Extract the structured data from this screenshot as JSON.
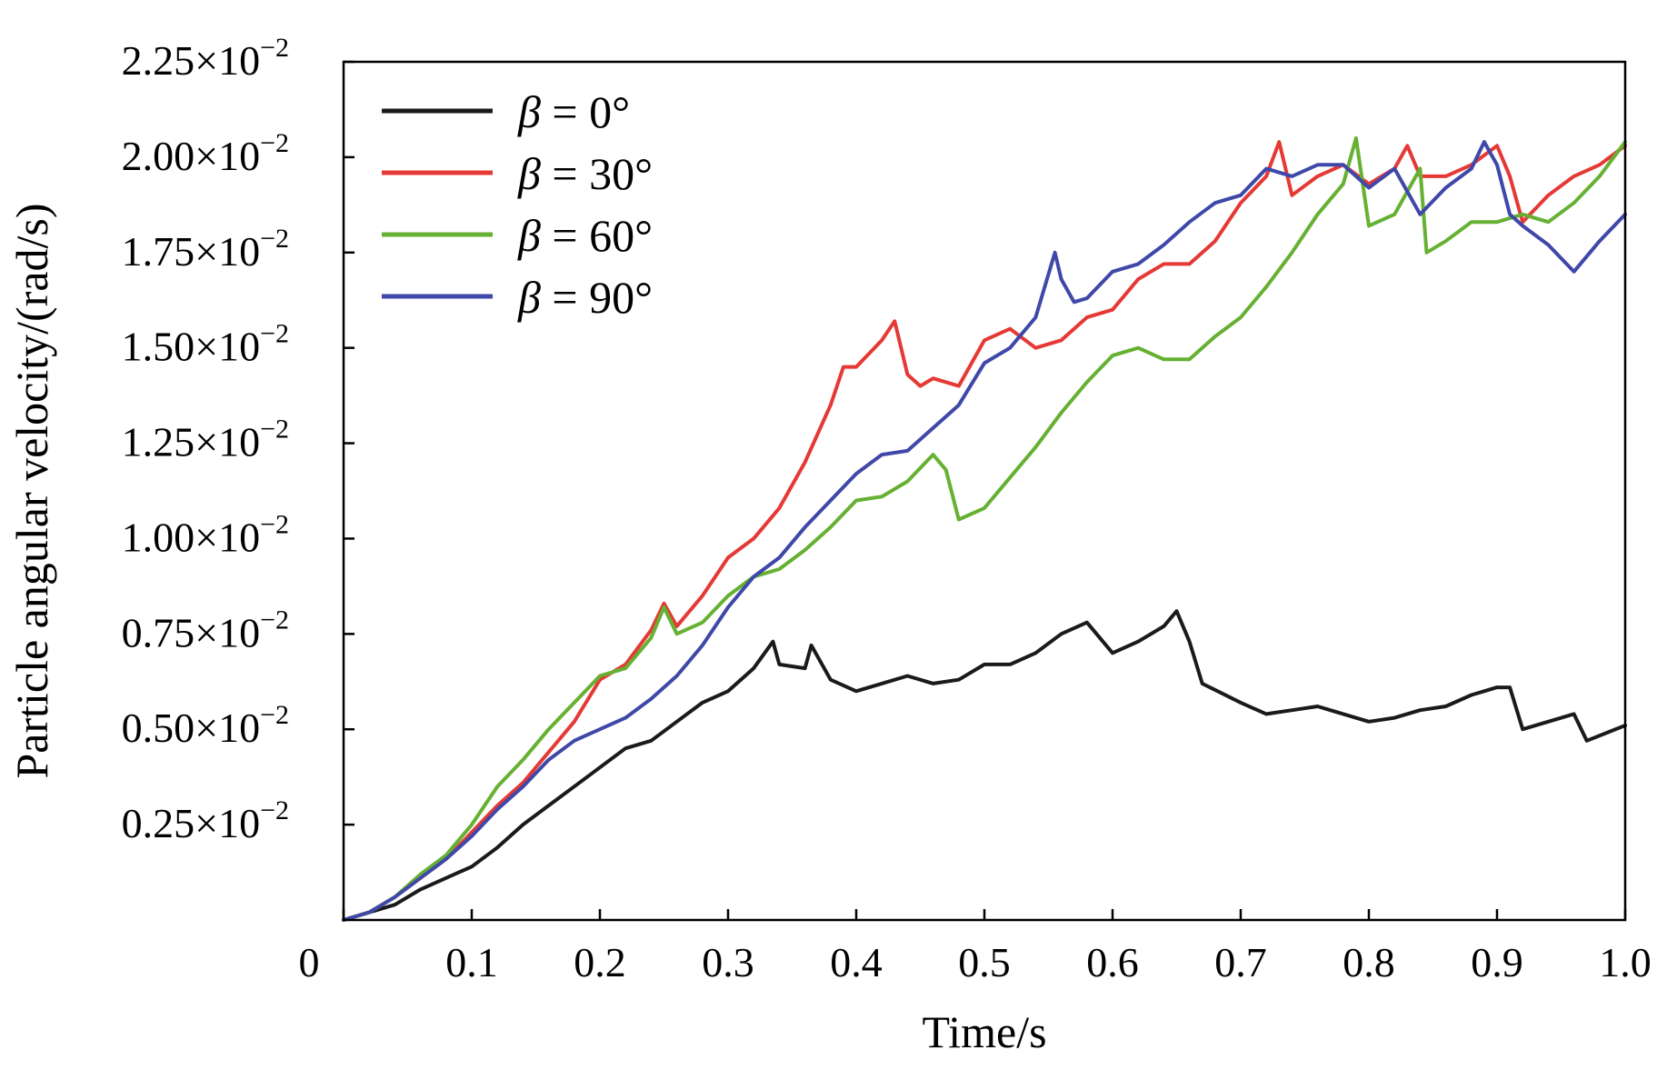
{
  "chart_data": {
    "type": "line",
    "xlabel": "Time/s",
    "ylabel": "Particle angular velocity/(rad/s)",
    "xlim": [
      0,
      1.0
    ],
    "ylim": [
      0,
      0.0225
    ],
    "x_ticks": [
      {
        "value": 0,
        "label": "0"
      },
      {
        "value": 0.1,
        "label": "0.1"
      },
      {
        "value": 0.2,
        "label": "0.2"
      },
      {
        "value": 0.3,
        "label": "0.3"
      },
      {
        "value": 0.4,
        "label": "0.4"
      },
      {
        "value": 0.5,
        "label": "0.5"
      },
      {
        "value": 0.6,
        "label": "0.6"
      },
      {
        "value": 0.7,
        "label": "0.7"
      },
      {
        "value": 0.8,
        "label": "0.8"
      },
      {
        "value": 0.9,
        "label": "0.9"
      },
      {
        "value": 1.0,
        "label": "1.0"
      }
    ],
    "y_ticks": [
      {
        "value": 0.0025,
        "mantissa": "0.25",
        "times": "×10",
        "exponent": "−2"
      },
      {
        "value": 0.005,
        "mantissa": "0.50",
        "times": "×10",
        "exponent": "−2"
      },
      {
        "value": 0.0075,
        "mantissa": "0.75",
        "times": "×10",
        "exponent": "−2"
      },
      {
        "value": 0.01,
        "mantissa": "1.00",
        "times": "×10",
        "exponent": "−2"
      },
      {
        "value": 0.0125,
        "mantissa": "1.25",
        "times": "×10",
        "exponent": "−2"
      },
      {
        "value": 0.015,
        "mantissa": "1.50",
        "times": "×10",
        "exponent": "−2"
      },
      {
        "value": 0.0175,
        "mantissa": "1.75",
        "times": "×10",
        "exponent": "−2"
      },
      {
        "value": 0.02,
        "mantissa": "2.00",
        "times": "×10",
        "exponent": "−2"
      },
      {
        "value": 0.0225,
        "mantissa": "2.25",
        "times": "×10",
        "exponent": "−2"
      }
    ],
    "grid": false,
    "legend_position": "top-left",
    "series": [
      {
        "name": "β = 0°",
        "beta_symbol": "β",
        "beta_value": " = 0°",
        "color": "#1a1a1a",
        "x": [
          0,
          0.02,
          0.04,
          0.06,
          0.08,
          0.1,
          0.12,
          0.14,
          0.16,
          0.18,
          0.2,
          0.22,
          0.24,
          0.26,
          0.28,
          0.3,
          0.32,
          0.335,
          0.34,
          0.36,
          0.365,
          0.38,
          0.4,
          0.42,
          0.44,
          0.46,
          0.48,
          0.5,
          0.52,
          0.54,
          0.56,
          0.58,
          0.6,
          0.62,
          0.64,
          0.65,
          0.66,
          0.67,
          0.7,
          0.72,
          0.74,
          0.76,
          0.78,
          0.8,
          0.82,
          0.84,
          0.86,
          0.88,
          0.9,
          0.91,
          0.92,
          0.94,
          0.96,
          0.97,
          1.0
        ],
        "y": [
          0,
          0.0002,
          0.0004,
          0.0008,
          0.0011,
          0.0014,
          0.0019,
          0.0025,
          0.003,
          0.0035,
          0.004,
          0.0045,
          0.0047,
          0.0052,
          0.0057,
          0.006,
          0.0066,
          0.0073,
          0.0067,
          0.0066,
          0.0072,
          0.0063,
          0.006,
          0.0062,
          0.0064,
          0.0062,
          0.0063,
          0.0067,
          0.0067,
          0.007,
          0.0075,
          0.0078,
          0.007,
          0.0073,
          0.0077,
          0.0081,
          0.0073,
          0.0062,
          0.0057,
          0.0054,
          0.0055,
          0.0056,
          0.0054,
          0.0052,
          0.0053,
          0.0055,
          0.0056,
          0.0059,
          0.0061,
          0.0061,
          0.005,
          0.0052,
          0.0054,
          0.0047,
          0.0051
        ]
      },
      {
        "name": "β = 30°",
        "beta_symbol": "β",
        "beta_value": " = 30°",
        "color": "#e53935",
        "x": [
          0,
          0.02,
          0.04,
          0.06,
          0.08,
          0.1,
          0.12,
          0.14,
          0.16,
          0.18,
          0.2,
          0.22,
          0.24,
          0.25,
          0.26,
          0.28,
          0.3,
          0.32,
          0.34,
          0.36,
          0.38,
          0.39,
          0.4,
          0.42,
          0.43,
          0.44,
          0.45,
          0.46,
          0.48,
          0.5,
          0.52,
          0.54,
          0.56,
          0.58,
          0.6,
          0.62,
          0.64,
          0.66,
          0.68,
          0.7,
          0.72,
          0.73,
          0.74,
          0.76,
          0.78,
          0.8,
          0.82,
          0.83,
          0.84,
          0.86,
          0.88,
          0.9,
          0.91,
          0.92,
          0.94,
          0.96,
          0.98,
          1.0
        ],
        "y": [
          0,
          0.0002,
          0.0006,
          0.0011,
          0.0016,
          0.0023,
          0.003,
          0.0036,
          0.0044,
          0.0052,
          0.0063,
          0.0067,
          0.0076,
          0.0083,
          0.0077,
          0.0085,
          0.0095,
          0.01,
          0.0108,
          0.012,
          0.0135,
          0.0145,
          0.0145,
          0.0152,
          0.0157,
          0.0143,
          0.014,
          0.0142,
          0.014,
          0.0152,
          0.0155,
          0.015,
          0.0152,
          0.0158,
          0.016,
          0.0168,
          0.0172,
          0.0172,
          0.0178,
          0.0188,
          0.0195,
          0.0204,
          0.019,
          0.0195,
          0.0198,
          0.0193,
          0.0197,
          0.0203,
          0.0195,
          0.0195,
          0.0198,
          0.0203,
          0.0195,
          0.0183,
          0.019,
          0.0195,
          0.0198,
          0.0203
        ]
      },
      {
        "name": "β = 60°",
        "beta_symbol": "β",
        "beta_value": " = 60°",
        "color": "#66b032",
        "x": [
          0,
          0.02,
          0.04,
          0.06,
          0.08,
          0.1,
          0.12,
          0.14,
          0.16,
          0.18,
          0.2,
          0.22,
          0.24,
          0.25,
          0.26,
          0.28,
          0.3,
          0.32,
          0.34,
          0.36,
          0.38,
          0.4,
          0.42,
          0.44,
          0.46,
          0.47,
          0.48,
          0.5,
          0.52,
          0.54,
          0.56,
          0.58,
          0.6,
          0.62,
          0.64,
          0.66,
          0.68,
          0.7,
          0.72,
          0.74,
          0.76,
          0.78,
          0.79,
          0.8,
          0.82,
          0.84,
          0.845,
          0.86,
          0.88,
          0.9,
          0.92,
          0.94,
          0.96,
          0.98,
          1.0
        ],
        "y": [
          0,
          0.0002,
          0.0006,
          0.0012,
          0.0017,
          0.0025,
          0.0035,
          0.0042,
          0.005,
          0.0057,
          0.0064,
          0.0066,
          0.0074,
          0.0082,
          0.0075,
          0.0078,
          0.0085,
          0.009,
          0.0092,
          0.0097,
          0.0103,
          0.011,
          0.0111,
          0.0115,
          0.0122,
          0.0118,
          0.0105,
          0.0108,
          0.0116,
          0.0124,
          0.0133,
          0.0141,
          0.0148,
          0.015,
          0.0147,
          0.0147,
          0.0153,
          0.0158,
          0.0166,
          0.0175,
          0.0185,
          0.0193,
          0.0205,
          0.0182,
          0.0185,
          0.0197,
          0.0175,
          0.0178,
          0.0183,
          0.0183,
          0.0185,
          0.0183,
          0.0188,
          0.0195,
          0.0204
        ]
      },
      {
        "name": "β = 90°",
        "beta_symbol": "β",
        "beta_value": " = 90°",
        "color": "#3f48a8",
        "x": [
          0,
          0.02,
          0.04,
          0.06,
          0.08,
          0.1,
          0.12,
          0.14,
          0.16,
          0.18,
          0.2,
          0.22,
          0.24,
          0.26,
          0.28,
          0.3,
          0.32,
          0.34,
          0.36,
          0.38,
          0.4,
          0.42,
          0.44,
          0.46,
          0.48,
          0.5,
          0.52,
          0.54,
          0.555,
          0.56,
          0.57,
          0.58,
          0.6,
          0.62,
          0.64,
          0.66,
          0.68,
          0.7,
          0.72,
          0.74,
          0.76,
          0.78,
          0.8,
          0.82,
          0.84,
          0.86,
          0.88,
          0.89,
          0.9,
          0.91,
          0.92,
          0.94,
          0.96,
          0.98,
          1.0
        ],
        "y": [
          0,
          0.0002,
          0.0006,
          0.0011,
          0.0016,
          0.0022,
          0.0029,
          0.0035,
          0.0042,
          0.0047,
          0.005,
          0.0053,
          0.0058,
          0.0064,
          0.0072,
          0.0082,
          0.009,
          0.0095,
          0.0103,
          0.011,
          0.0117,
          0.0122,
          0.0123,
          0.0129,
          0.0135,
          0.0146,
          0.015,
          0.0158,
          0.0175,
          0.0168,
          0.0162,
          0.0163,
          0.017,
          0.0172,
          0.0177,
          0.0183,
          0.0188,
          0.019,
          0.0197,
          0.0195,
          0.0198,
          0.0198,
          0.0192,
          0.0197,
          0.0185,
          0.0192,
          0.0197,
          0.0204,
          0.0198,
          0.0185,
          0.0182,
          0.0177,
          0.017,
          0.0178,
          0.0185
        ]
      }
    ]
  }
}
